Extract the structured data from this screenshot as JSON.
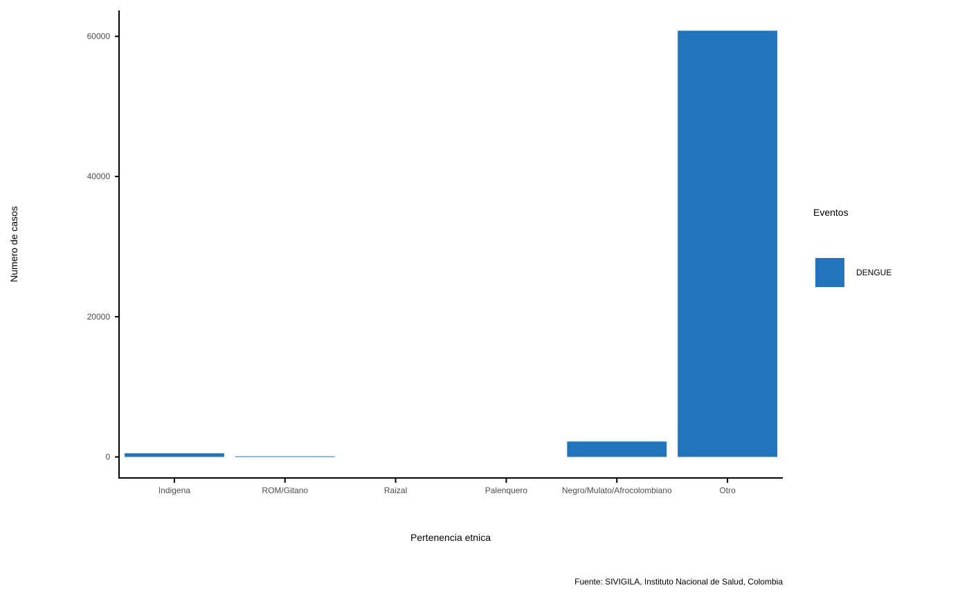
{
  "chart_data": {
    "type": "bar",
    "categories": [
      "Indigena",
      "ROM/Gitano",
      "Raizal",
      "Palenquero",
      "Negro/Mulato/Afrocolombiano",
      "Otro"
    ],
    "series": [
      {
        "name": "DENGUE",
        "values": [
          520,
          90,
          0,
          0,
          2200,
          60800
        ]
      }
    ],
    "xlabel": "Pertenencia etnica",
    "ylabel": "Numero de casos",
    "yticks": [
      0,
      20000,
      40000,
      60000
    ],
    "ylim": [
      -3000,
      63700
    ],
    "grid": false,
    "legend": {
      "title": "Eventos",
      "placement": "right"
    },
    "caption": "Fuente: SIVIGILA, Instituto Nacional de Salud, Colombia",
    "bar_color": "#2274bd"
  }
}
